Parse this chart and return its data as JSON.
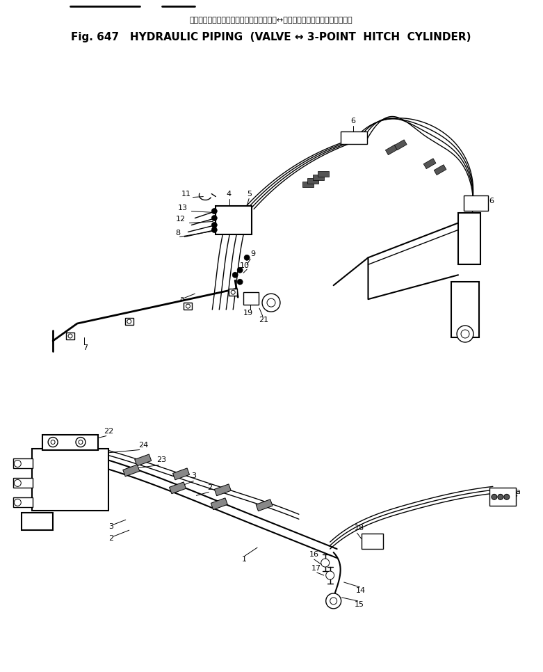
{
  "title_japanese": "ハイドロリック　パイピング　バルブ　　↔　　３点　　ヒッチ　　シリンダ",
  "title_english": "Fig. 647   HYDRAULIC PIPING  (VALVE ↔ 3-POINT  HITCH  CYLINDER)",
  "bg": "#ffffff",
  "lc": "#000000",
  "fig_width": 7.81,
  "fig_height": 9.66,
  "dpi": 100
}
